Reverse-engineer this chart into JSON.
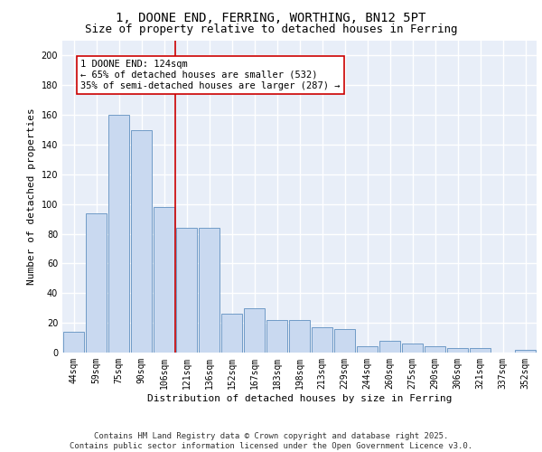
{
  "title": "1, DOONE END, FERRING, WORTHING, BN12 5PT",
  "subtitle": "Size of property relative to detached houses in Ferring",
  "xlabel": "Distribution of detached houses by size in Ferring",
  "ylabel": "Number of detached properties",
  "categories": [
    "44sqm",
    "59sqm",
    "75sqm",
    "90sqm",
    "106sqm",
    "121sqm",
    "136sqm",
    "152sqm",
    "167sqm",
    "183sqm",
    "198sqm",
    "213sqm",
    "229sqm",
    "244sqm",
    "260sqm",
    "275sqm",
    "290sqm",
    "306sqm",
    "321sqm",
    "337sqm",
    "352sqm"
  ],
  "values": [
    14,
    94,
    160,
    150,
    98,
    84,
    84,
    26,
    30,
    22,
    22,
    17,
    16,
    4,
    8,
    6,
    4,
    3,
    3,
    0,
    2
  ],
  "bar_color": "#c9d9f0",
  "bar_edge_color": "#6090c0",
  "background_color": "#e8eef8",
  "grid_color": "#ffffff",
  "vline_x_index": 5,
  "vline_color": "#cc0000",
  "annotation_text": "1 DOONE END: 124sqm\n← 65% of detached houses are smaller (532)\n35% of semi-detached houses are larger (287) →",
  "annotation_box_color": "#ffffff",
  "annotation_box_edge": "#cc0000",
  "ylim": [
    0,
    210
  ],
  "yticks": [
    0,
    20,
    40,
    60,
    80,
    100,
    120,
    140,
    160,
    180,
    200
  ],
  "footer": "Contains HM Land Registry data © Crown copyright and database right 2025.\nContains public sector information licensed under the Open Government Licence v3.0.",
  "title_fontsize": 10,
  "subtitle_fontsize": 9,
  "xlabel_fontsize": 8,
  "ylabel_fontsize": 8,
  "tick_fontsize": 7,
  "footer_fontsize": 6.5,
  "annot_fontsize": 7.5
}
